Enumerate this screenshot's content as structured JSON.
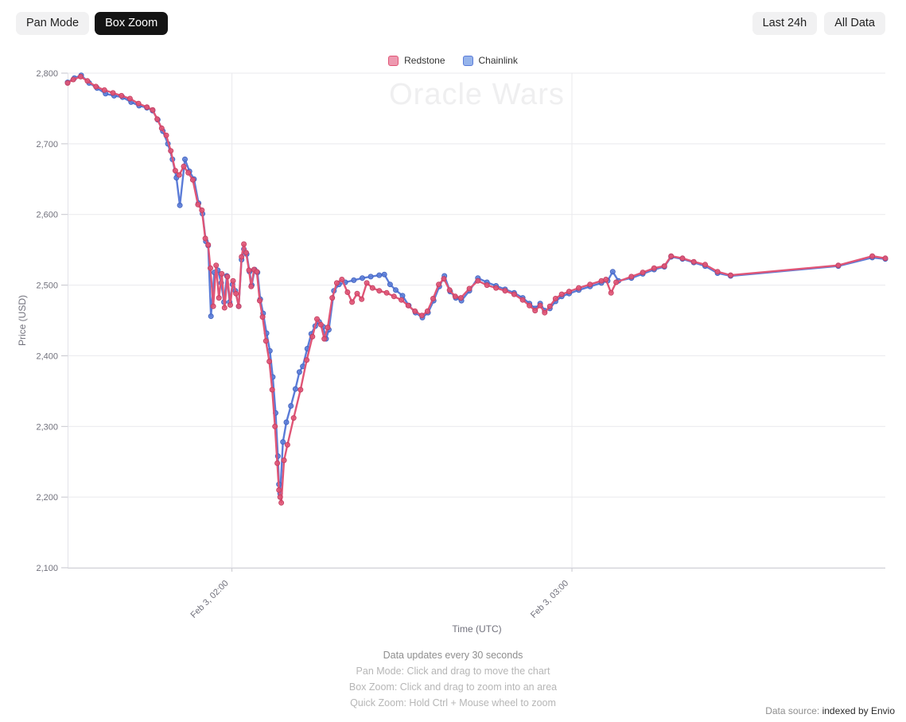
{
  "toolbar": {
    "pan_mode": "Pan Mode",
    "box_zoom": "Box Zoom",
    "last_24h": "Last 24h",
    "all_data": "All Data"
  },
  "legend": [
    {
      "label": "Redstone",
      "color": "#e05576",
      "fill": "#ee99b0"
    },
    {
      "label": "Chainlink",
      "color": "#5b7cd8",
      "fill": "#96b4eb"
    }
  ],
  "footer": {
    "line1": "Data updates every 30 seconds",
    "line2": "Pan Mode: Click and drag to move the chart",
    "line3": "Box Zoom: Click and drag to zoom into an area",
    "line4": "Quick Zoom: Hold Ctrl + Mouse wheel to zoom"
  },
  "datasource": {
    "prefix": "Data source:",
    "link": "indexed by Envio"
  },
  "chart_data": {
    "type": "line",
    "title": "Oracle Wars",
    "xlabel": "Time (UTC)",
    "ylabel": "Price (USD)",
    "x_unit": "minutes after Feb 3 00:00 UTC",
    "x_range": [
      91,
      235.3
    ],
    "ylim": [
      2100,
      2800
    ],
    "grid": true,
    "legend_position": "top",
    "marker": "circle",
    "x_ticks": [
      {
        "t": 120,
        "label": "Feb 3, 02:00"
      },
      {
        "t": 180,
        "label": "Feb 3, 03:00"
      }
    ],
    "y_ticks": [
      {
        "v": 2100,
        "label": "2,100"
      },
      {
        "v": 2200,
        "label": "2,200"
      },
      {
        "v": 2300,
        "label": "2,300"
      },
      {
        "v": 2400,
        "label": "2,400"
      },
      {
        "v": 2500,
        "label": "2,500"
      },
      {
        "v": 2600,
        "label": "2,600"
      },
      {
        "v": 2700,
        "label": "2,700"
      },
      {
        "v": 2800,
        "label": "2,800"
      }
    ],
    "series": [
      {
        "name": "Redstone",
        "color": "#e05576",
        "fill": "#ee99b0",
        "marker_stroke": "#c74063",
        "points": [
          [
            91,
            2786
          ],
          [
            92,
            2791
          ],
          [
            93.3,
            2795
          ],
          [
            94.5,
            2789
          ],
          [
            96,
            2781
          ],
          [
            97.5,
            2776
          ],
          [
            99,
            2772
          ],
          [
            100.5,
            2768
          ],
          [
            102,
            2764
          ],
          [
            103.5,
            2757
          ],
          [
            105,
            2752
          ],
          [
            106,
            2748
          ],
          [
            106.8,
            2735
          ],
          [
            107.6,
            2722
          ],
          [
            108.4,
            2712
          ],
          [
            109.2,
            2690
          ],
          [
            110,
            2662
          ],
          [
            110.7,
            2656
          ],
          [
            111.5,
            2668
          ],
          [
            112.3,
            2659
          ],
          [
            113.1,
            2649
          ],
          [
            114,
            2614
          ],
          [
            114.7,
            2606
          ],
          [
            115.3,
            2566
          ],
          [
            115.8,
            2557
          ],
          [
            116.2,
            2524
          ],
          [
            116.7,
            2470
          ],
          [
            117.2,
            2528
          ],
          [
            117.7,
            2482
          ],
          [
            118.2,
            2516
          ],
          [
            118.7,
            2468
          ],
          [
            119.2,
            2512
          ],
          [
            119.7,
            2472
          ],
          [
            120.2,
            2506
          ],
          [
            120.7,
            2488
          ],
          [
            121.2,
            2470
          ],
          [
            121.7,
            2540
          ],
          [
            122.1,
            2558
          ],
          [
            122.5,
            2546
          ],
          [
            123,
            2521
          ],
          [
            123.4,
            2498
          ],
          [
            123.9,
            2522
          ],
          [
            124.4,
            2519
          ],
          [
            124.9,
            2478
          ],
          [
            125.4,
            2455
          ],
          [
            126,
            2421
          ],
          [
            126.6,
            2392
          ],
          [
            127.1,
            2352
          ],
          [
            127.6,
            2300
          ],
          [
            128,
            2248
          ],
          [
            128.3,
            2210
          ],
          [
            128.5,
            2200
          ],
          [
            128.7,
            2192
          ],
          [
            129.2,
            2252
          ],
          [
            129.8,
            2274
          ],
          [
            130.9,
            2312
          ],
          [
            132.1,
            2352
          ],
          [
            133.2,
            2394
          ],
          [
            134.2,
            2427
          ],
          [
            135,
            2452
          ],
          [
            135.7,
            2444
          ],
          [
            136.3,
            2424
          ],
          [
            136.9,
            2440
          ],
          [
            137.7,
            2482
          ],
          [
            138.5,
            2503
          ],
          [
            139.4,
            2508
          ],
          [
            140.4,
            2490
          ],
          [
            141.2,
            2476
          ],
          [
            142.1,
            2488
          ],
          [
            142.9,
            2480
          ],
          [
            143.8,
            2503
          ],
          [
            144.8,
            2496
          ],
          [
            146,
            2492
          ],
          [
            147.3,
            2489
          ],
          [
            148.6,
            2484
          ],
          [
            149.9,
            2479
          ],
          [
            151.1,
            2471
          ],
          [
            152.3,
            2463
          ],
          [
            153.5,
            2457
          ],
          [
            154.5,
            2463
          ],
          [
            155.5,
            2481
          ],
          [
            156.5,
            2501
          ],
          [
            157.4,
            2509
          ],
          [
            158.4,
            2493
          ],
          [
            159.4,
            2484
          ],
          [
            160.4,
            2482
          ],
          [
            161.9,
            2495
          ],
          [
            163.4,
            2506
          ],
          [
            165,
            2500
          ],
          [
            166.6,
            2496
          ],
          [
            168.2,
            2492
          ],
          [
            169.8,
            2487
          ],
          [
            171.3,
            2479
          ],
          [
            172.5,
            2471
          ],
          [
            173.5,
            2464
          ],
          [
            174.4,
            2471
          ],
          [
            175.2,
            2461
          ],
          [
            176.1,
            2470
          ],
          [
            177.1,
            2481
          ],
          [
            178.2,
            2487
          ],
          [
            179.5,
            2491
          ],
          [
            181.2,
            2496
          ],
          [
            183.2,
            2501
          ],
          [
            185.2,
            2506
          ],
          [
            186,
            2508
          ],
          [
            186.9,
            2489
          ],
          [
            187.8,
            2504
          ],
          [
            190.5,
            2512
          ],
          [
            192.5,
            2518
          ],
          [
            194.5,
            2524
          ],
          [
            196.3,
            2527
          ],
          [
            197.5,
            2541
          ],
          [
            199.5,
            2538
          ],
          [
            201.5,
            2533
          ],
          [
            203.5,
            2529
          ],
          [
            205.7,
            2519
          ],
          [
            208,
            2514
          ],
          [
            227,
            2528
          ],
          [
            233,
            2541
          ],
          [
            235.3,
            2538
          ]
        ]
      },
      {
        "name": "Chainlink",
        "color": "#5b7cd8",
        "fill": "#96b4eb",
        "marker_stroke": "#4566c2",
        "points": [
          [
            91,
            2787
          ],
          [
            92.2,
            2793
          ],
          [
            93.4,
            2797
          ],
          [
            94.8,
            2786
          ],
          [
            96.2,
            2779
          ],
          [
            97.7,
            2771
          ],
          [
            99.2,
            2768
          ],
          [
            100.7,
            2766
          ],
          [
            102.2,
            2759
          ],
          [
            103.6,
            2754
          ],
          [
            105,
            2751
          ],
          [
            106,
            2747
          ],
          [
            106.9,
            2734
          ],
          [
            107.8,
            2718
          ],
          [
            108.7,
            2700
          ],
          [
            109.5,
            2678
          ],
          [
            110.2,
            2652
          ],
          [
            110.8,
            2613
          ],
          [
            111.7,
            2678
          ],
          [
            112.5,
            2661
          ],
          [
            113.3,
            2650
          ],
          [
            114.1,
            2616
          ],
          [
            114.8,
            2601
          ],
          [
            115.4,
            2562
          ],
          [
            115.8,
            2556
          ],
          [
            116.3,
            2456
          ],
          [
            116.9,
            2518
          ],
          [
            117.5,
            2521
          ],
          [
            118.1,
            2503
          ],
          [
            118.6,
            2476
          ],
          [
            119.1,
            2513
          ],
          [
            119.6,
            2476
          ],
          [
            120.1,
            2501
          ],
          [
            120.6,
            2492
          ],
          [
            121.2,
            2470
          ],
          [
            121.7,
            2536
          ],
          [
            122.1,
            2551
          ],
          [
            122.6,
            2544
          ],
          [
            123.1,
            2519
          ],
          [
            123.5,
            2500
          ],
          [
            124,
            2522
          ],
          [
            124.5,
            2518
          ],
          [
            125,
            2480
          ],
          [
            125.5,
            2460
          ],
          [
            126.1,
            2432
          ],
          [
            126.7,
            2407
          ],
          [
            127.2,
            2370
          ],
          [
            127.7,
            2319
          ],
          [
            128.1,
            2258
          ],
          [
            128.3,
            2218
          ],
          [
            128.5,
            2205
          ],
          [
            129,
            2278
          ],
          [
            129.6,
            2306
          ],
          [
            130.4,
            2329
          ],
          [
            131.2,
            2353
          ],
          [
            131.9,
            2377
          ],
          [
            132.5,
            2385
          ],
          [
            133.3,
            2410
          ],
          [
            134,
            2431
          ],
          [
            134.7,
            2442
          ],
          [
            135.4,
            2448
          ],
          [
            136.1,
            2441
          ],
          [
            136.6,
            2424
          ],
          [
            137.1,
            2437
          ],
          [
            138,
            2492
          ],
          [
            138.9,
            2501
          ],
          [
            140,
            2504
          ],
          [
            141.5,
            2507
          ],
          [
            143,
            2510
          ],
          [
            144.5,
            2512
          ],
          [
            146,
            2514
          ],
          [
            146.9,
            2515
          ],
          [
            147.9,
            2501
          ],
          [
            148.9,
            2493
          ],
          [
            150.1,
            2485
          ],
          [
            151.2,
            2471
          ],
          [
            152.4,
            2461
          ],
          [
            153.6,
            2454
          ],
          [
            154.6,
            2461
          ],
          [
            155.6,
            2478
          ],
          [
            156.6,
            2498
          ],
          [
            157.5,
            2513
          ],
          [
            158.5,
            2491
          ],
          [
            159.5,
            2482
          ],
          [
            160.5,
            2478
          ],
          [
            161.9,
            2492
          ],
          [
            163.4,
            2510
          ],
          [
            165,
            2504
          ],
          [
            166.6,
            2499
          ],
          [
            168.2,
            2494
          ],
          [
            169.8,
            2489
          ],
          [
            171.3,
            2482
          ],
          [
            172.5,
            2474
          ],
          [
            173.5,
            2467
          ],
          [
            174.4,
            2474
          ],
          [
            175.2,
            2464
          ],
          [
            176.1,
            2467
          ],
          [
            177.1,
            2477
          ],
          [
            178.2,
            2484
          ],
          [
            179.5,
            2488
          ],
          [
            181.2,
            2493
          ],
          [
            183.2,
            2498
          ],
          [
            185.2,
            2503
          ],
          [
            186.3,
            2506
          ],
          [
            187.2,
            2519
          ],
          [
            188.2,
            2506
          ],
          [
            190.5,
            2510
          ],
          [
            192.5,
            2516
          ],
          [
            194.5,
            2522
          ],
          [
            196.3,
            2526
          ],
          [
            197.5,
            2540
          ],
          [
            199.5,
            2537
          ],
          [
            201.5,
            2532
          ],
          [
            203.5,
            2527
          ],
          [
            205.7,
            2517
          ],
          [
            208,
            2513
          ],
          [
            227,
            2527
          ],
          [
            233,
            2539
          ],
          [
            235.3,
            2537
          ]
        ]
      }
    ]
  }
}
